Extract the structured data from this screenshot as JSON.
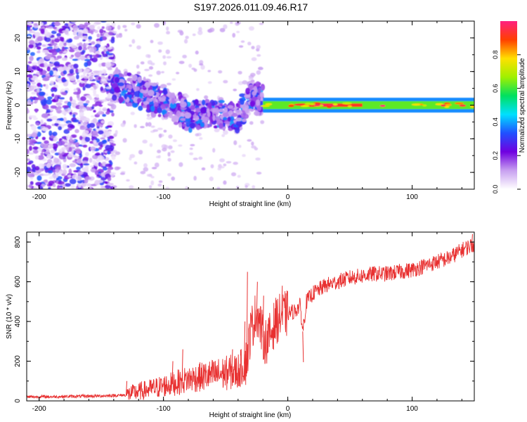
{
  "title": "S197.2026.011.09.46.R17",
  "chart_data": [
    {
      "type": "heatmap",
      "title": "S197.2026.011.09.46.R17",
      "xlabel": "Height of straight line (km)",
      "ylabel": "Frequency (Hz)",
      "xlim": [
        -210,
        150
      ],
      "ylim": [
        -25,
        25
      ],
      "xticks": [
        -200,
        -100,
        0,
        100
      ],
      "yticks": [
        -20,
        -10,
        0,
        10,
        20
      ],
      "colorbar": {
        "label": "Normalized spectral amplitude",
        "range": [
          0,
          1
        ],
        "ticks": [
          "0.0",
          "0.2",
          "0.4",
          "0.6",
          "0.8"
        ],
        "colors": [
          "#ffffff",
          "#c8a0f0",
          "#7000e0",
          "#2050ff",
          "#00e0ff",
          "#00e060",
          "#a0f000",
          "#ffe000",
          "#ff4000",
          "#ff2080"
        ]
      },
      "features": {
        "noise_region_km": [
          -210,
          -140
        ],
        "doppler_track": [
          {
            "x": -140,
            "y": 6
          },
          {
            "x": -120,
            "y": 4
          },
          {
            "x": -100,
            "y": 1
          },
          {
            "x": -80,
            "y": -3
          },
          {
            "x": -60,
            "y": -2
          },
          {
            "x": -40,
            "y": -4
          },
          {
            "x": -30,
            "y": 3
          },
          {
            "x": -20,
            "y": 1
          },
          {
            "x": 0,
            "y": 0
          },
          {
            "x": 150,
            "y": 0
          }
        ],
        "strong_carrier_km": [
          -20,
          150
        ]
      }
    },
    {
      "type": "line",
      "xlabel": "Height of straight line (km)",
      "ylabel": "SNR (10 * v/v)",
      "xlim": [
        -210,
        150
      ],
      "ylim": [
        0,
        850
      ],
      "xticks": [
        -200,
        -100,
        0,
        100
      ],
      "yticks": [
        0,
        200,
        400,
        600,
        800
      ],
      "series": [
        {
          "name": "SNR",
          "color": "#e83030",
          "x": [
            -210,
            -180,
            -150,
            -135,
            -130,
            -125,
            -110,
            -90,
            -80,
            -70,
            -60,
            -50,
            -40,
            -33,
            -30,
            -25,
            -22,
            -20,
            -18,
            -15,
            -10,
            -5,
            0,
            5,
            10,
            12,
            15,
            20,
            30,
            40,
            50,
            60,
            70,
            80,
            90,
            100,
            110,
            120,
            130,
            140,
            150
          ],
          "values": [
            20,
            22,
            25,
            28,
            30,
            40,
            60,
            90,
            110,
            120,
            130,
            140,
            150,
            200,
            350,
            450,
            380,
            320,
            300,
            320,
            400,
            430,
            440,
            450,
            480,
            350,
            500,
            540,
            580,
            600,
            620,
            630,
            640,
            640,
            650,
            660,
            680,
            700,
            720,
            760,
            790
          ]
        }
      ],
      "spikes": [
        {
          "x": -130,
          "y": 100
        },
        {
          "x": -93,
          "y": 200
        },
        {
          "x": -85,
          "y": 260
        },
        {
          "x": -45,
          "y": 260
        },
        {
          "x": -35,
          "y": 400
        },
        {
          "x": -33,
          "y": 650
        },
        {
          "x": -25,
          "y": 600
        },
        {
          "x": -20,
          "y": 530
        },
        {
          "x": -5,
          "y": 580
        },
        {
          "x": 12,
          "y": 195
        },
        {
          "x": 90,
          "y": 680
        },
        {
          "x": 148,
          "y": 840
        }
      ]
    }
  ]
}
